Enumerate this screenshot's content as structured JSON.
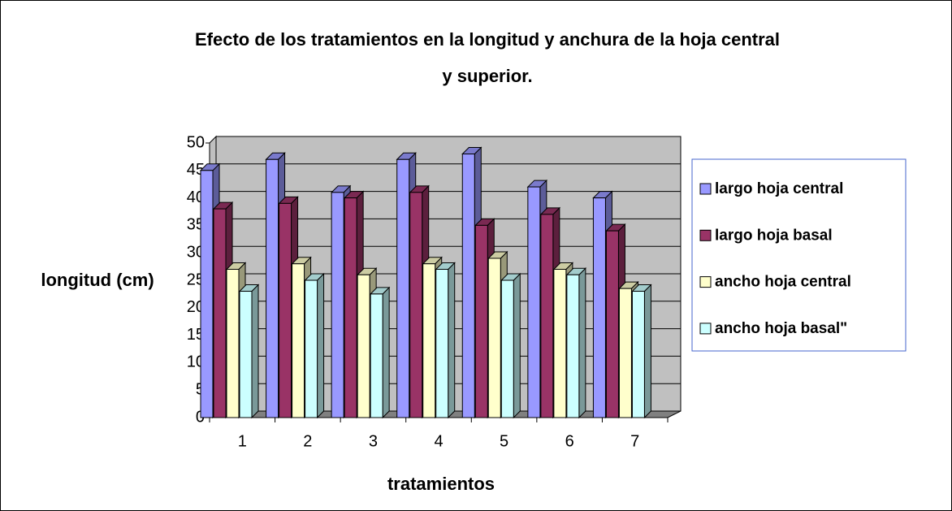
{
  "chart_data": {
    "type": "bar3d",
    "title": [
      "Efecto de los tratamientos en la longitud y anchura de la hoja central",
      "y superior."
    ],
    "x_label": "tratamientos",
    "y_label": "longitud (cm)",
    "categories": [
      "1",
      "2",
      "3",
      "4",
      "5",
      "6",
      "7"
    ],
    "series": [
      {
        "name": "largo hoja central",
        "color": "#9999ff",
        "values": [
          45,
          47,
          41,
          47,
          48,
          42,
          40
        ]
      },
      {
        "name": "largo hoja basal",
        "color": "#993366",
        "values": [
          38,
          39,
          40,
          41,
          35,
          37,
          34
        ]
      },
      {
        "name": "ancho hoja central",
        "color": "#ffffcc",
        "values": [
          27,
          28,
          26,
          28,
          29,
          27,
          23.5
        ]
      },
      {
        "name": "ancho hoja basal\"",
        "color": "#ccffff",
        "values": [
          23,
          25,
          22.5,
          27,
          25,
          26,
          23
        ]
      }
    ],
    "ylim": [
      0,
      50
    ],
    "yticks": [
      0,
      5,
      10,
      15,
      20,
      25,
      30,
      35,
      40,
      45,
      50
    ],
    "grid": true,
    "legend": "right"
  }
}
